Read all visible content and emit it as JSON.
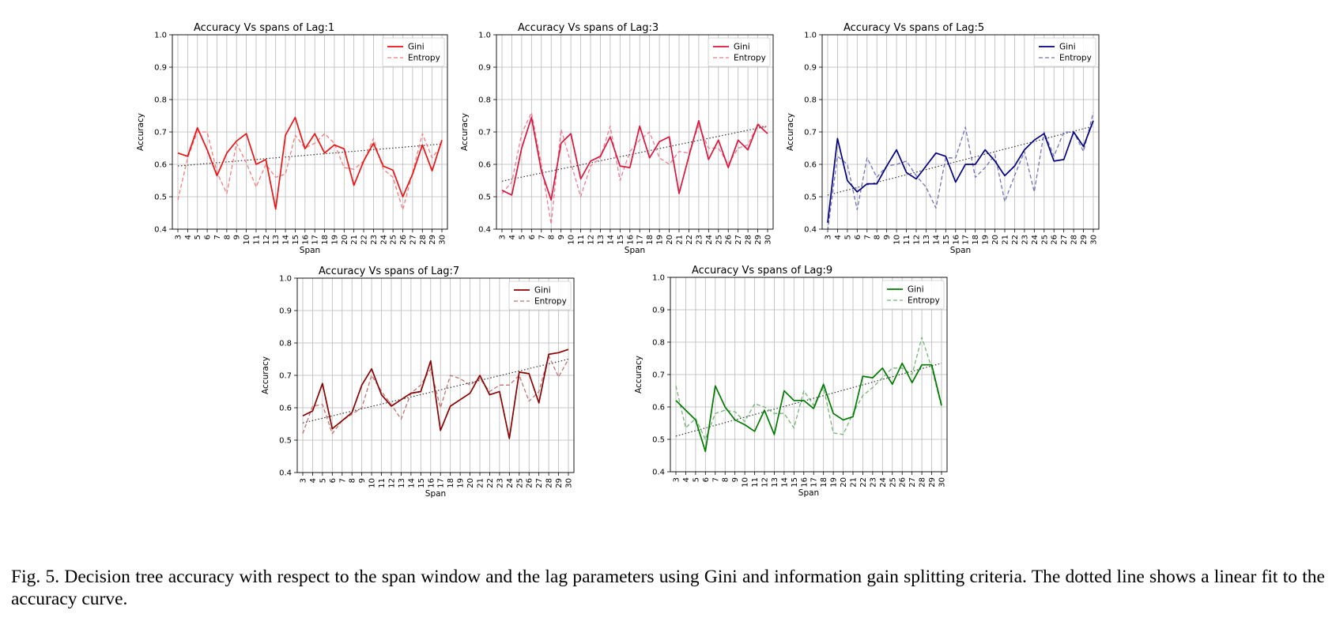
{
  "chart_data": [
    {
      "type": "line",
      "title": "Accuracy Vs spans of Lag:1",
      "xlabel": "Span",
      "ylabel": "Accuracy",
      "ylim": [
        0.4,
        1.0
      ],
      "yticks": [
        "0.4",
        "0.5",
        "0.6",
        "0.7",
        "0.8",
        "0.9",
        "1.0"
      ],
      "x": [
        "3",
        "4",
        "5",
        "6",
        "7",
        "8",
        "9",
        "10",
        "11",
        "12",
        "13",
        "14",
        "15",
        "16",
        "17",
        "18",
        "19",
        "20",
        "21",
        "22",
        "23",
        "24",
        "25",
        "26",
        "27",
        "28",
        "29",
        "30"
      ],
      "color": "#ee1111",
      "series": [
        {
          "name": "Gini",
          "style": "solid",
          "values": [
            0.635,
            0.625,
            0.713,
            0.645,
            0.565,
            0.635,
            0.672,
            0.695,
            0.6,
            0.615,
            0.462,
            0.69,
            0.745,
            0.648,
            0.695,
            0.635,
            0.66,
            0.648,
            0.535,
            0.61,
            0.665,
            0.595,
            0.582,
            0.5,
            0.57,
            0.66,
            0.58,
            0.675
          ]
        },
        {
          "name": "Entropy",
          "style": "dashed",
          "values": [
            0.49,
            0.62,
            0.7,
            0.7,
            0.575,
            0.51,
            0.665,
            0.605,
            0.53,
            0.6,
            0.56,
            0.57,
            0.69,
            0.65,
            0.665,
            0.695,
            0.665,
            0.59,
            0.585,
            0.61,
            0.68,
            0.585,
            0.56,
            0.46,
            0.575,
            0.695,
            0.62,
            0.66
          ]
        }
      ],
      "fit": [
        0.595,
        0.663
      ]
    },
    {
      "type": "line",
      "title": "Accuracy Vs spans of Lag:3",
      "xlabel": "Span",
      "ylabel": "Accuracy",
      "ylim": [
        0.4,
        1.0
      ],
      "yticks": [
        "0.4",
        "0.5",
        "0.6",
        "0.7",
        "0.8",
        "0.9",
        "1.0"
      ],
      "x": [
        "3",
        "4",
        "5",
        "6",
        "7",
        "8",
        "9",
        "10",
        "11",
        "12",
        "13",
        "14",
        "15",
        "16",
        "17",
        "18",
        "19",
        "20",
        "21",
        "22",
        "23",
        "24",
        "25",
        "26",
        "27",
        "28",
        "29",
        "30"
      ],
      "color": "#dc143c",
      "series": [
        {
          "name": "Gini",
          "style": "solid",
          "values": [
            0.52,
            0.505,
            0.65,
            0.745,
            0.58,
            0.49,
            0.665,
            0.695,
            0.555,
            0.61,
            0.625,
            0.685,
            0.595,
            0.59,
            0.718,
            0.62,
            0.67,
            0.685,
            0.51,
            0.625,
            0.735,
            0.615,
            0.675,
            0.59,
            0.675,
            0.645,
            0.723,
            0.695
          ]
        },
        {
          "name": "Entropy",
          "style": "dashed",
          "values": [
            0.51,
            0.545,
            0.695,
            0.76,
            0.6,
            0.415,
            0.708,
            0.605,
            0.5,
            0.595,
            0.62,
            0.718,
            0.55,
            0.64,
            0.675,
            0.7,
            0.62,
            0.6,
            0.64,
            0.635,
            0.72,
            0.65,
            0.65,
            0.6,
            0.65,
            0.66,
            0.725,
            0.71
          ]
        }
      ],
      "fit": [
        0.548,
        0.718
      ]
    },
    {
      "type": "line",
      "title": "Accuracy Vs spans of Lag:5",
      "xlabel": "Span",
      "ylabel": "Accuracy",
      "ylim": [
        0.4,
        1.0
      ],
      "yticks": [
        "0.4",
        "0.5",
        "0.6",
        "0.7",
        "0.8",
        "0.9",
        "1.0"
      ],
      "x": [
        "3",
        "4",
        "5",
        "6",
        "7",
        "8",
        "9",
        "10",
        "11",
        "12",
        "13",
        "14",
        "15",
        "16",
        "17",
        "18",
        "19",
        "20",
        "21",
        "22",
        "23",
        "24",
        "25",
        "26",
        "27",
        "28",
        "29",
        "30"
      ],
      "color": "#000080",
      "series": [
        {
          "name": "Gini",
          "style": "solid",
          "values": [
            0.42,
            0.68,
            0.55,
            0.515,
            0.54,
            0.54,
            0.595,
            0.645,
            0.575,
            0.555,
            0.595,
            0.635,
            0.625,
            0.545,
            0.6,
            0.6,
            0.645,
            0.61,
            0.565,
            0.595,
            0.645,
            0.675,
            0.695,
            0.61,
            0.615,
            0.7,
            0.655,
            0.735
          ]
        },
        {
          "name": "Entropy",
          "style": "dashed",
          "values": [
            0.395,
            0.625,
            0.6,
            0.46,
            0.62,
            0.56,
            0.595,
            0.6,
            0.61,
            0.565,
            0.53,
            0.465,
            0.62,
            0.62,
            0.715,
            0.56,
            0.59,
            0.63,
            0.485,
            0.565,
            0.64,
            0.515,
            0.7,
            0.625,
            0.7,
            0.7,
            0.64,
            0.76
          ]
        }
      ],
      "fit": [
        0.505,
        0.718
      ]
    },
    {
      "type": "line",
      "title": "Accuracy Vs spans of Lag:7",
      "xlabel": "Span",
      "ylabel": "Accuracy",
      "ylim": [
        0.4,
        1.0
      ],
      "yticks": [
        "0.4",
        "0.5",
        "0.6",
        "0.7",
        "0.8",
        "0.9",
        "1.0"
      ],
      "x": [
        "3",
        "4",
        "5",
        "6",
        "7",
        "8",
        "9",
        "10",
        "11",
        "12",
        "13",
        "14",
        "15",
        "16",
        "17",
        "18",
        "19",
        "20",
        "21",
        "22",
        "23",
        "24",
        "25",
        "26",
        "27",
        "28",
        "29",
        "30"
      ],
      "color": "#8b0000",
      "series": [
        {
          "name": "Gini",
          "style": "solid",
          "values": [
            0.575,
            0.59,
            0.675,
            0.535,
            0.56,
            0.585,
            0.67,
            0.72,
            0.64,
            0.605,
            0.625,
            0.645,
            0.65,
            0.745,
            0.53,
            0.605,
            0.625,
            0.645,
            0.7,
            0.64,
            0.65,
            0.505,
            0.71,
            0.705,
            0.615,
            0.765,
            0.77,
            0.78
          ]
        },
        {
          "name": "Entropy",
          "style": "dashed",
          "values": [
            0.52,
            0.605,
            0.61,
            0.52,
            0.56,
            0.58,
            0.6,
            0.7,
            0.65,
            0.61,
            0.565,
            0.645,
            0.67,
            0.72,
            0.6,
            0.7,
            0.69,
            0.67,
            0.69,
            0.65,
            0.67,
            0.67,
            0.7,
            0.62,
            0.65,
            0.76,
            0.695,
            0.75
          ]
        }
      ],
      "fit": [
        0.553,
        0.75
      ]
    },
    {
      "type": "line",
      "title": "Accuracy Vs spans of Lag:9",
      "xlabel": "Span",
      "ylabel": "Accuracy",
      "ylim": [
        0.4,
        1.0
      ],
      "yticks": [
        "0.4",
        "0.5",
        "0.6",
        "0.7",
        "0.8",
        "0.9",
        "1.0"
      ],
      "x": [
        "3",
        "4",
        "5",
        "6",
        "7",
        "8",
        "9",
        "10",
        "11",
        "12",
        "13",
        "14",
        "15",
        "16",
        "17",
        "18",
        "19",
        "20",
        "21",
        "22",
        "23",
        "24",
        "25",
        "26",
        "27",
        "28",
        "29",
        "30"
      ],
      "color": "#007a00",
      "series": [
        {
          "name": "Gini",
          "style": "solid",
          "values": [
            0.62,
            0.59,
            0.56,
            0.463,
            0.665,
            0.6,
            0.56,
            0.545,
            0.525,
            0.59,
            0.515,
            0.65,
            0.62,
            0.62,
            0.595,
            0.67,
            0.58,
            0.56,
            0.57,
            0.695,
            0.69,
            0.72,
            0.67,
            0.735,
            0.675,
            0.73,
            0.73,
            0.605
          ]
        },
        {
          "name": "Entropy",
          "style": "dashed",
          "values": [
            0.665,
            0.535,
            0.565,
            0.5,
            0.58,
            0.59,
            0.585,
            0.555,
            0.61,
            0.6,
            0.58,
            0.58,
            0.535,
            0.65,
            0.605,
            0.66,
            0.52,
            0.515,
            0.58,
            0.635,
            0.66,
            0.69,
            0.72,
            0.72,
            0.7,
            0.815,
            0.72,
            0.6
          ]
        }
      ],
      "fit": [
        0.51,
        0.735
      ]
    }
  ],
  "caption": "Fig. 5.  Decision tree accuracy with respect to the span window and the lag parameters using Gini and information gain splitting criteria. The dotted line shows a linear fit to the accuracy curve."
}
